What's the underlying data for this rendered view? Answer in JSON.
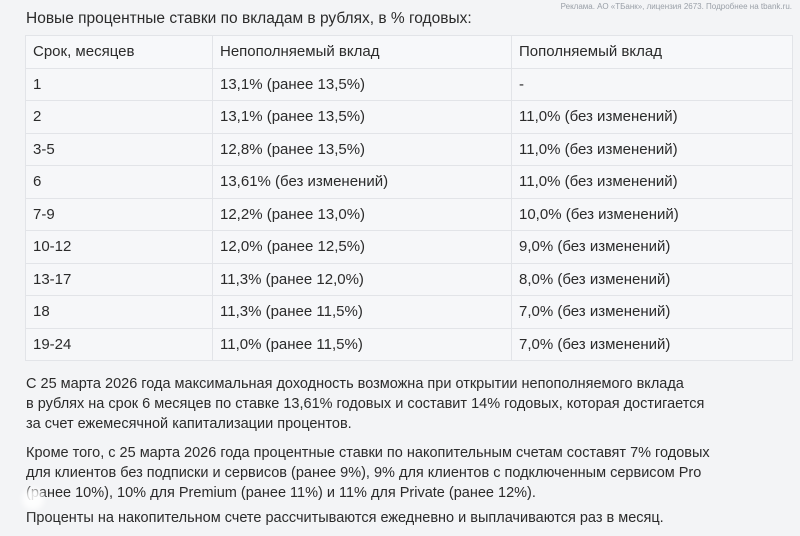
{
  "ad_note": "Реклама. АО «ТБанк», лицензия 2673. Подробнее на tbank.ru.",
  "title": "Новые процентные ставки по вкладам в рублях, в % годовых:",
  "table": {
    "headers": [
      "Срок, месяцев",
      "Непополняемый вклад",
      "Пополняемый вклад"
    ],
    "rows": [
      [
        "1",
        "13,1% (ранее 13,5%)",
        "-"
      ],
      [
        "2",
        "13,1% (ранее 13,5%)",
        "11,0% (без изменений)"
      ],
      [
        "3-5",
        "12,8% (ранее 13,5%)",
        "11,0% (без изменений)"
      ],
      [
        "6",
        "13,61% (без изменений)",
        "11,0% (без изменений)"
      ],
      [
        "7-9",
        "12,2% (ранее 13,0%)",
        "10,0% (без изменений)"
      ],
      [
        "10-12",
        "12,0% (ранее 12,5%)",
        "9,0% (без изменений)"
      ],
      [
        "13-17",
        "11,3% (ранее 12,0%)",
        "8,0% (без изменений)"
      ],
      [
        "18",
        "11,3% (ранее 11,5%)",
        "7,0% (без изменений)"
      ],
      [
        "19-24",
        "11,0% (ранее 11,5%)",
        "7,0% (без изменений)"
      ]
    ]
  },
  "paragraphs": {
    "p1_l1": "С 25 марта 2026 года максимальная доходность возможна при открытии непополняемого вклада",
    "p1_l2": "в рублях на срок 6 месяцев по ставке 13,61% годовых и составит 14% годовых, которая достигается",
    "p1_l3": "за счет ежемесячной капитализации процентов.",
    "p2_l1": "Кроме того, с 25 марта 2026 года процентные ставки по накопительным счетам составят 7% годовых",
    "p2_l2": "для клиентов без подписки и сервисов (ранее 9%), 9% для клиентов с подключенным сервисом Pro",
    "p2_l3": "(ранее 10%), 10% для Premium (ранее 11%) и 11% для Private (ранее 12%).",
    "p3_l1": "Проценты на накопительном счете рассчитываются ежедневно и выплачиваются раз в месяц."
  }
}
